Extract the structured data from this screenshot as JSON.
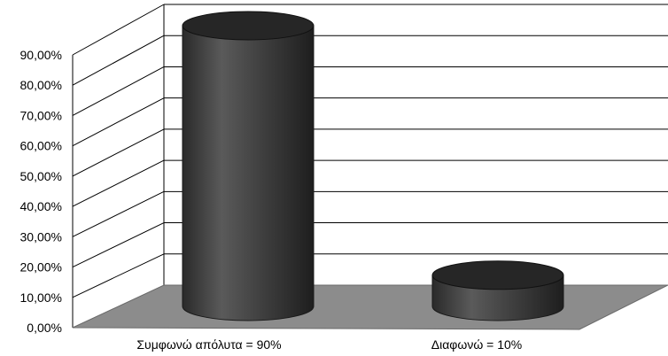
{
  "chart_data": {
    "type": "bar",
    "style": "3d-cylinder",
    "title": "",
    "xlabel": "",
    "ylabel": "",
    "categories": [
      "Συμφωνώ απόλυτα = 90%",
      "Διαφωνώ = 10%"
    ],
    "values": [
      0.9,
      0.1
    ],
    "ylim": [
      0,
      0.9
    ],
    "yticks": [
      0,
      0.1,
      0.2,
      0.3,
      0.4,
      0.5,
      0.6,
      0.7,
      0.8,
      0.9
    ],
    "ytick_labels": [
      "0,00%",
      "10,00%",
      "20,00%",
      "30,00%",
      "40,00%",
      "50,00%",
      "60,00%",
      "70,00%",
      "80,00%",
      "90,00%"
    ],
    "grid": true,
    "legend": "none",
    "colors": {
      "bar": "#3a3a3a",
      "bar_top": "#262626",
      "floor": "#8c8c8c",
      "grid": "#000000"
    }
  }
}
